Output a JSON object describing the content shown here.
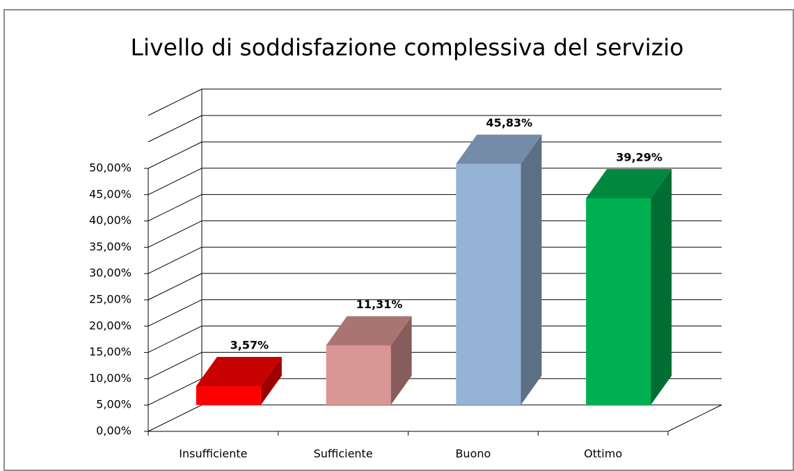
{
  "chart_data": {
    "type": "bar3d",
    "title": "Livello di soddisfazione complessiva del servizio",
    "categories": [
      "Insufficiente",
      "Sufficiente",
      "Buono",
      "Ottimo"
    ],
    "values": [
      3.57,
      11.31,
      45.83,
      39.29
    ],
    "value_labels": [
      "3,57%",
      "11,31%",
      "45,83%",
      "39,29%"
    ],
    "colors": [
      "#ff0000",
      "#d99694",
      "#95b3d7",
      "#00b050"
    ],
    "ylim": [
      0,
      50
    ],
    "yticks": [
      {
        "value": 0,
        "label": "0,00%"
      },
      {
        "value": 5,
        "label": "5,00%"
      },
      {
        "value": 10,
        "label": "10,00%"
      },
      {
        "value": 15,
        "label": "15,00%"
      },
      {
        "value": 20,
        "label": "20,00%"
      },
      {
        "value": 25,
        "label": "25,00%"
      },
      {
        "value": 30,
        "label": "30,00%"
      },
      {
        "value": 35,
        "label": "35,00%"
      },
      {
        "value": 40,
        "label": "40,00%"
      },
      {
        "value": 45,
        "label": "45,00%"
      },
      {
        "value": 50,
        "label": "50,00%"
      }
    ],
    "grid": true
  }
}
